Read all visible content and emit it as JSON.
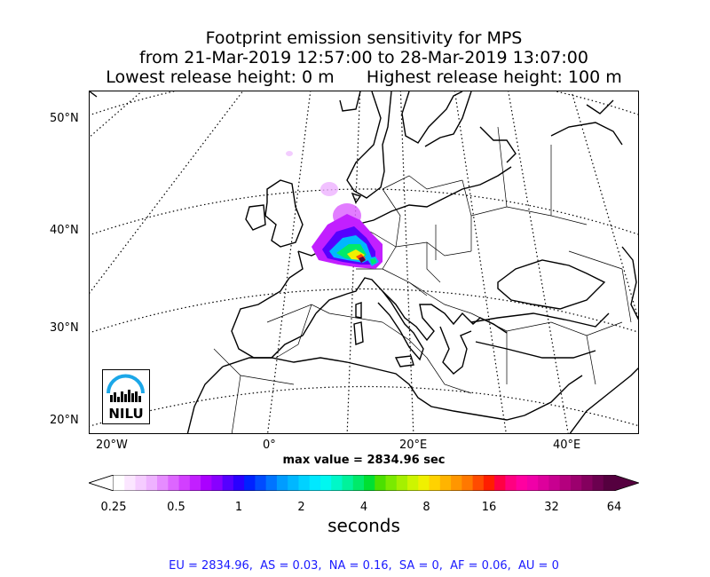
{
  "title": {
    "line1": "Footprint emission sensitivity for MPS",
    "line2": "from 21-Mar-2019 12:57:00 to 28-Mar-2019 13:07:00",
    "line3": "Lowest release height: 0 m      Highest release height: 100 m"
  },
  "map": {
    "lat_labels": [
      "50°N",
      "40°N",
      "30°N",
      "20°N"
    ],
    "lon_labels": [
      "20°W",
      "0°",
      "20°E",
      "40°E"
    ],
    "logo_text": "NILU",
    "colors": {
      "coast": "#000000",
      "border": "#000000",
      "grid": "#000000"
    }
  },
  "max_value_text": "max value = 2834.96 sec",
  "colorbar": {
    "ticks": [
      "0.25",
      "0.5",
      "1",
      "2",
      "4",
      "8",
      "16",
      "32",
      "64"
    ],
    "unit_label": "seconds",
    "colors": [
      "#ffffff",
      "#fbe6ff",
      "#f5ccff",
      "#eeb2ff",
      "#e68cff",
      "#dd66ff",
      "#d23fff",
      "#c21fff",
      "#aa00ff",
      "#8800ff",
      "#5500ff",
      "#2a00ff",
      "#0022ff",
      "#004bff",
      "#0074ff",
      "#009cff",
      "#00b7ff",
      "#00d2ff",
      "#00e8ff",
      "#00f7f0",
      "#00f7c8",
      "#00f29b",
      "#00ea6a",
      "#00e032",
      "#4be000",
      "#7aea00",
      "#a5f000",
      "#cdf500",
      "#f0f000",
      "#ffd200",
      "#ffb400",
      "#ff9600",
      "#ff7800",
      "#ff4b00",
      "#ff1e00",
      "#ff0044",
      "#ff0080",
      "#ff00a0",
      "#f000a8",
      "#dd009c",
      "#c80090",
      "#b4007e",
      "#9c006e",
      "#84005e",
      "#6b004f",
      "#55003f"
    ]
  },
  "footer": "EU = 2834.96,  AS = 0.03,  NA = 0.16,  SA = 0,  AF = 0.06,  AU = 0"
}
